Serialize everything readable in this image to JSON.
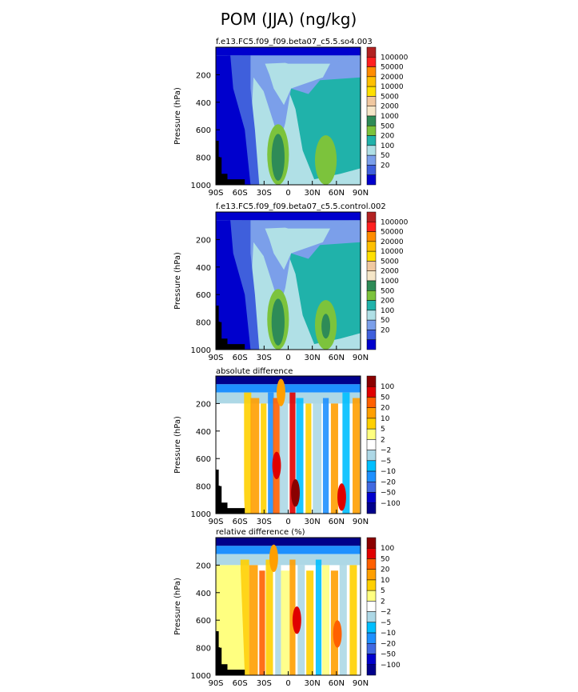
{
  "figure_title": "POM (JJA) (ng/kg)",
  "chart_data": [
    {
      "type": "heatmap",
      "title": "f.e13.FC5.f09_f09.beta07_c5.5.so4.003",
      "ylabel": "Pressure (hPa)",
      "x_ticks": [
        "90S",
        "60S",
        "30S",
        "0",
        "30N",
        "60N",
        "90N"
      ],
      "y_ticks": [
        "200",
        "400",
        "600",
        "800",
        "1000"
      ],
      "colorbar_labels": [
        "100000",
        "50000",
        "20000",
        "10000",
        "5000",
        "2000",
        "1000",
        "500",
        "200",
        "100",
        "50",
        "20"
      ]
    },
    {
      "type": "heatmap",
      "title": "f.e13.FC5.f09_f09.beta07_c5.5.control.002",
      "ylabel": "Pressure (hPa)",
      "x_ticks": [
        "90S",
        "60S",
        "30S",
        "0",
        "30N",
        "60N",
        "90N"
      ],
      "y_ticks": [
        "200",
        "400",
        "600",
        "800",
        "1000"
      ],
      "colorbar_labels": [
        "100000",
        "50000",
        "20000",
        "10000",
        "5000",
        "2000",
        "1000",
        "500",
        "200",
        "100",
        "50",
        "20"
      ]
    },
    {
      "type": "heatmap",
      "title": "absolute difference",
      "ylabel": "Pressure (hPa)",
      "x_ticks": [
        "90S",
        "60S",
        "30S",
        "0",
        "30N",
        "60N",
        "90N"
      ],
      "y_ticks": [
        "200",
        "400",
        "600",
        "800",
        "1000"
      ],
      "colorbar_labels": [
        "100",
        "50",
        "20",
        "10",
        "5",
        "2",
        "−2",
        "−5",
        "−10",
        "−20",
        "−50",
        "−100"
      ]
    },
    {
      "type": "heatmap",
      "title": "relative difference (%)",
      "ylabel": "Pressure (hPa)",
      "x_ticks": [
        "90S",
        "60S",
        "30S",
        "0",
        "30N",
        "60N",
        "90N"
      ],
      "y_ticks": [
        "200",
        "400",
        "600",
        "800",
        "1000"
      ],
      "colorbar_labels": [
        "100",
        "50",
        "20",
        "10",
        "5",
        "2",
        "−2",
        "−5",
        "−10",
        "−20",
        "−50",
        "−100"
      ]
    }
  ],
  "colors": {
    "abs_scale": [
      "#b22222",
      "#ff2020",
      "#ff8c00",
      "#ffc000",
      "#ffe000",
      "#f0c8a0",
      "#f5e6c8",
      "#2e8b57",
      "#7cc33c",
      "#20b2aa",
      "#b0e0e6",
      "#7b9fea",
      "#3f5fdc",
      "#0000cd"
    ],
    "diff_scale": [
      "#8b0000",
      "#e00000",
      "#ff6000",
      "#ff9f00",
      "#ffd000",
      "#ffff80",
      "#ffffff",
      "#add8e6",
      "#00bfff",
      "#1e90ff",
      "#4169e1",
      "#0000cd",
      "#00008b"
    ]
  }
}
